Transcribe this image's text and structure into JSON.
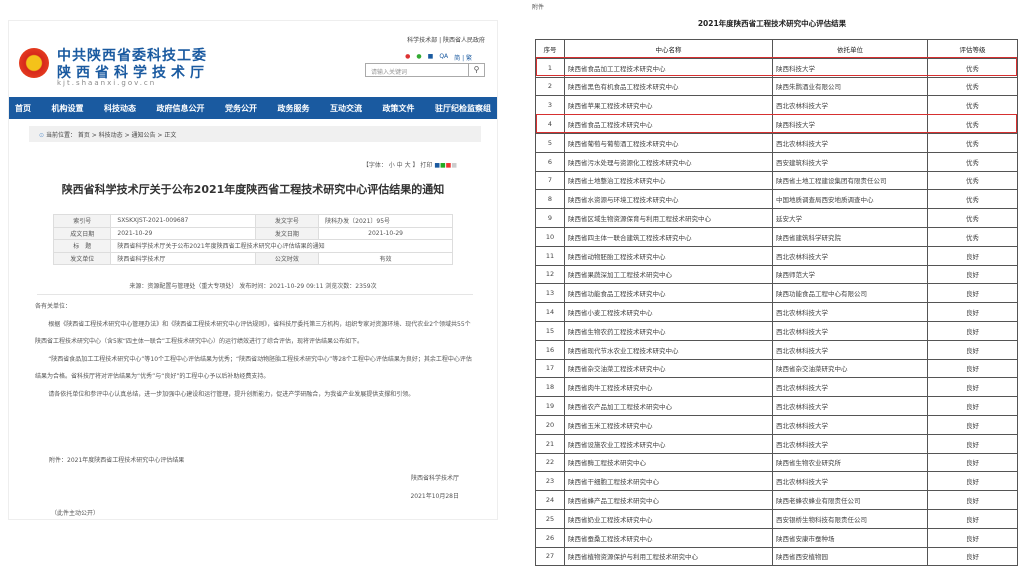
{
  "site": {
    "top_links": "科学技术部 | 陕西省人民政府",
    "brand_line1": "中共陕西省委科技工委",
    "brand_line2": "陕西省科学技术厅",
    "domain": "kjt.shaanxi.gov.cn",
    "utility_icons": [
      "weibo-icon",
      "wechat-icon",
      "message-icon",
      "qa-icon"
    ],
    "lang_links": "简 | 繁",
    "search_placeholder": "请输入关键词",
    "accent": "#1a5aa0"
  },
  "nav": [
    "首页",
    "机构设置",
    "科技动态",
    "政府信息公开",
    "党务公开",
    "政务服务",
    "互动交流",
    "政策文件",
    "驻厅纪检监察组"
  ],
  "breadcrumb": "当前位置： 首页 > 科技动态 > 通知公告 > 正文",
  "font_tools": "【字体： 小  中  大 】  打印",
  "article": {
    "title": "陕西省科学技术厅关于公布2021年度陕西省工程技术研究中心评估结果的通知",
    "meta": {
      "index_label": "索引号",
      "index": "SXSKXJST-2021-009687",
      "docno_label": "发文字号",
      "docno": "陕科办发〔2021〕95号",
      "date_label": "成文日期",
      "date": "2021-10-29",
      "pubdate_label": "发文日期",
      "pubdate": "2021-10-29",
      "subject_label": "标　题",
      "subject": "陕西省科学技术厅关于公布2021年度陕西省工程技术研究中心评估结果的通知",
      "issuer_label": "发文单位",
      "issuer": "陕西省科学技术厅",
      "validity_label": "公文时效",
      "validity": "有效"
    },
    "source": "来源：资源配置与管理处（重大专项处）     发布时间：2021-10-29 09:11     浏览次数：2359次",
    "salutation": "各有关单位：",
    "p1": "根据《陕西省工程技术研究中心管理办法》和《陕西省工程技术研究中心评估规则》，省科技厅委托第三方机构，组织专家对资源环境、现代农业2个领域共55个陕西省工程技术研究中心（含5家“四主体一联合”工程技术研究中心）的运行绩效进行了综合评估，现将评估结果公布如下。",
    "p2": "“陕西省食品加工工程技术研究中心”等10个工程中心评估结果为优秀；“陕西省动物胚胎工程技术研究中心”等28个工程中心评估结果为良好；其余工程中心评估结果为合格。省科技厅将对评估结果为“优秀”与“良好”的工程中心予以后补助经费支持。",
    "p3": "请各依托单位和参评中心认真总结，进一步加强中心建设和运行管理，提升创新能力，促进产学研融合，为我省产业发展提供支撑和引领。",
    "attachment": "附件：2021年度陕西省工程技术研究中心评估结果",
    "signer": "陕西省科学技术厅",
    "sign_date": "2021年10月28日",
    "public_note": "（此件主动公开）"
  },
  "results": {
    "attach_label": "附件",
    "title": "2021年度陕西省工程技术研究中心评估结果",
    "headers": [
      "序号",
      "中心名称",
      "依托单位",
      "评估等级"
    ],
    "highlight_color": "#d63030",
    "rows": [
      [
        "1",
        "陕西省食品加工工程技术研究中心",
        "陕西科技大学",
        "优秀"
      ],
      [
        "2",
        "陕西省黑色有机食品工程技术研究中心",
        "陕西朱鹮酒业有限公司",
        "优秀"
      ],
      [
        "3",
        "陕西省苹果工程技术研究中心",
        "西北农林科技大学",
        "优秀"
      ],
      [
        "4",
        "陕西省食品工程技术研究中心",
        "陕西科技大学",
        "优秀"
      ],
      [
        "5",
        "陕西省葡萄与葡萄酒工程技术研究中心",
        "西北农林科技大学",
        "优秀"
      ],
      [
        "6",
        "陕西省污水处理与资源化工程技术研究中心",
        "西安建筑科技大学",
        "优秀"
      ],
      [
        "7",
        "陕西省土地整治工程技术研究中心",
        "陕西省土地工程建设集团有限责任公司",
        "优秀"
      ],
      [
        "8",
        "陕西省水资源与环境工程技术研究中心",
        "中国地质调查局西安地质调查中心",
        "优秀"
      ],
      [
        "9",
        "陕西省区域生物资源保育与利用工程技术研究中心",
        "延安大学",
        "优秀"
      ],
      [
        "10",
        "陕西省四主体一联合建筑工程技术研究中心",
        "陕西省建筑科学研究院",
        "优秀"
      ],
      [
        "11",
        "陕西省动物胚胎工程技术研究中心",
        "西北农林科技大学",
        "良好"
      ],
      [
        "12",
        "陕西省果蔬深加工工程技术研究中心",
        "陕西师范大学",
        "良好"
      ],
      [
        "13",
        "陕西省功能食品工程技术研究中心",
        "陕西功能食品工程中心有限公司",
        "良好"
      ],
      [
        "14",
        "陕西省小麦工程技术研究中心",
        "西北农林科技大学",
        "良好"
      ],
      [
        "15",
        "陕西省生物农药工程技术研究中心",
        "西北农林科技大学",
        "良好"
      ],
      [
        "16",
        "陕西省现代节水农业工程技术研究中心",
        "西北农林科技大学",
        "良好"
      ],
      [
        "17",
        "陕西省杂交油菜工程技术研究中心",
        "陕西省杂交油菜研究中心",
        "良好"
      ],
      [
        "18",
        "陕西省肉牛工程技术研究中心",
        "西北农林科技大学",
        "良好"
      ],
      [
        "19",
        "陕西省农产品加工工程技术研究中心",
        "西北农林科技大学",
        "良好"
      ],
      [
        "20",
        "陕西省玉米工程技术研究中心",
        "西北农林科技大学",
        "良好"
      ],
      [
        "21",
        "陕西省设施农业工程技术研究中心",
        "西北农林科技大学",
        "良好"
      ],
      [
        "22",
        "陕西省酶工程技术研究中心",
        "陕西省生物农业研究所",
        "良好"
      ],
      [
        "23",
        "陕西省干细胞工程技术研究中心",
        "西北农林科技大学",
        "良好"
      ],
      [
        "24",
        "陕西省蜂产品工程技术研究中心",
        "陕西老蜂农蜂业有限责任公司",
        "良好"
      ],
      [
        "25",
        "陕西省奶业工程技术研究中心",
        "西安银桥生物科技有限责任公司",
        "良好"
      ],
      [
        "26",
        "陕西省蚕桑工程技术研究中心",
        "陕西省安康市蚕种场",
        "良好"
      ],
      [
        "27",
        "陕西省植物资源保护与利用工程技术研究中心",
        "陕西省西安植物园",
        "良好"
      ]
    ]
  }
}
